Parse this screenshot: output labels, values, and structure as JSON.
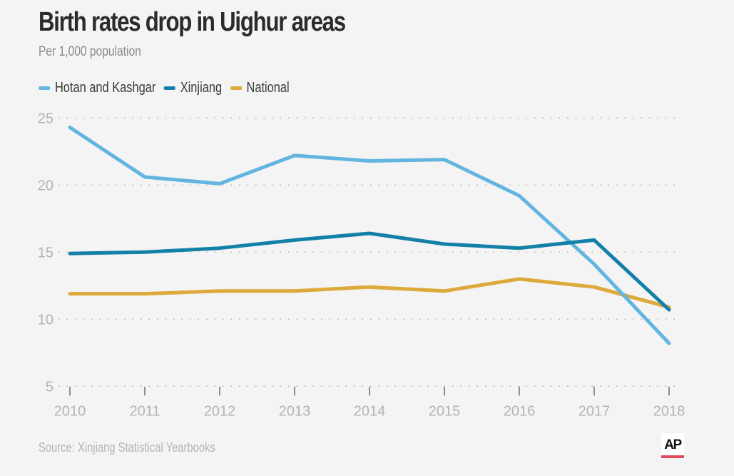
{
  "header": {
    "title": "Birth rates drop in Uighur areas",
    "subtitle": "Per 1,000 population"
  },
  "footer": {
    "source": "Source: Xinjiang Statistical Yearbooks",
    "logo_text": "AP",
    "logo_accent_color": "#e04a5c"
  },
  "chart_data": {
    "type": "line",
    "title": "Birth rates drop in Uighur areas",
    "subtitle": "Per 1,000 population",
    "xlabel": "",
    "ylabel": "",
    "x": [
      "2010",
      "2011",
      "2012",
      "2013",
      "2014",
      "2015",
      "2016",
      "2017",
      "2018"
    ],
    "ylim": [
      5,
      25
    ],
    "yticks": [
      "5",
      "10",
      "15",
      "20",
      "25"
    ],
    "grid": "horizontal-dotted",
    "legend_position": "top-left",
    "series": [
      {
        "name": "Hotan and Kashgar",
        "color": "#63b5e0",
        "values": [
          24.3,
          20.6,
          20.1,
          22.2,
          21.8,
          21.9,
          19.2,
          14.1,
          8.2
        ]
      },
      {
        "name": "Xinjiang",
        "color": "#1380a8",
        "values": [
          14.9,
          15.0,
          15.3,
          15.9,
          16.4,
          15.6,
          15.3,
          15.9,
          10.7
        ]
      },
      {
        "name": "National",
        "color": "#dca93a",
        "values": [
          11.9,
          11.9,
          12.1,
          12.1,
          12.4,
          12.1,
          13.0,
          12.4,
          10.9
        ]
      }
    ]
  }
}
